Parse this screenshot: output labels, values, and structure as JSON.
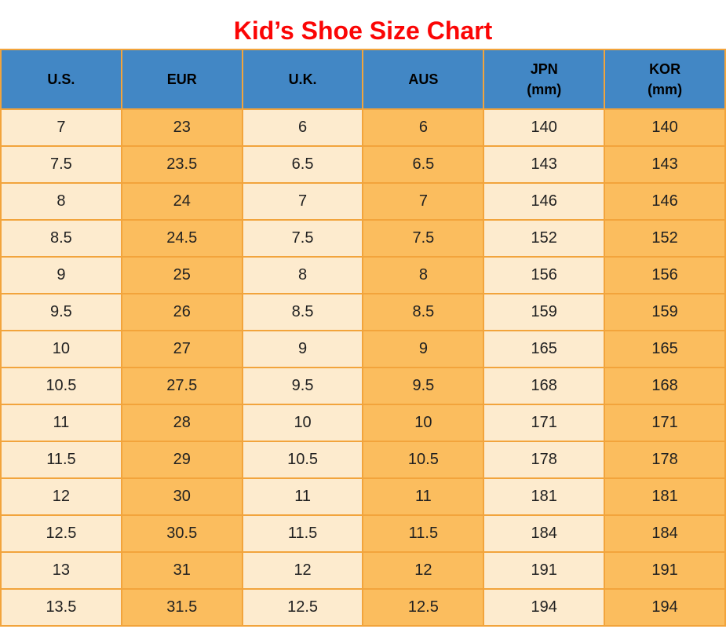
{
  "title": {
    "text": "Kid’s Shoe Size Chart",
    "color": "#fb0505"
  },
  "table": {
    "columns": [
      {
        "label": "U.S.",
        "sub": ""
      },
      {
        "label": "EUR",
        "sub": ""
      },
      {
        "label": "U.K.",
        "sub": ""
      },
      {
        "label": "AUS",
        "sub": ""
      },
      {
        "label": "JPN",
        "sub": "(mm)"
      },
      {
        "label": "KOR",
        "sub": "(mm)"
      }
    ],
    "rows": [
      [
        "7",
        "23",
        "6",
        "6",
        "140",
        "140"
      ],
      [
        "7.5",
        "23.5",
        "6.5",
        "6.5",
        "143",
        "143"
      ],
      [
        "8",
        "24",
        "7",
        "7",
        "146",
        "146"
      ],
      [
        "8.5",
        "24.5",
        "7.5",
        "7.5",
        "152",
        "152"
      ],
      [
        "9",
        "25",
        "8",
        "8",
        "156",
        "156"
      ],
      [
        "9.5",
        "26",
        "8.5",
        "8.5",
        "159",
        "159"
      ],
      [
        "10",
        "27",
        "9",
        "9",
        "165",
        "165"
      ],
      [
        "10.5",
        "27.5",
        "9.5",
        "9.5",
        "168",
        "168"
      ],
      [
        "11",
        "28",
        "10",
        "10",
        "171",
        "171"
      ],
      [
        "11.5",
        "29",
        "10.5",
        "10.5",
        "178",
        "178"
      ],
      [
        "12",
        "30",
        "11",
        "11",
        "181",
        "181"
      ],
      [
        "12.5",
        "30.5",
        "11.5",
        "11.5",
        "184",
        "184"
      ],
      [
        "13",
        "31",
        "12",
        "12",
        "191",
        "191"
      ],
      [
        "13.5",
        "31.5",
        "12.5",
        "12.5",
        "194",
        "194"
      ]
    ],
    "colors": {
      "header_bg": "#4287c5",
      "header_text": "#000000",
      "cell_cream": "#fdebce",
      "cell_orange": "#fbbd5e",
      "border": "#f2a43c",
      "body_text": "#212121",
      "title_red": "#fb0505"
    }
  },
  "chart_data": {
    "type": "table",
    "title": "Kid’s Shoe Size Chart",
    "columns": [
      "U.S.",
      "EUR",
      "U.K.",
      "AUS",
      "JPN (mm)",
      "KOR (mm)"
    ],
    "rows": [
      [
        7,
        23,
        6,
        6,
        140,
        140
      ],
      [
        7.5,
        23.5,
        6.5,
        6.5,
        143,
        143
      ],
      [
        8,
        24,
        7,
        7,
        146,
        146
      ],
      [
        8.5,
        24.5,
        7.5,
        7.5,
        152,
        152
      ],
      [
        9,
        25,
        8,
        8,
        156,
        156
      ],
      [
        9.5,
        26,
        8.5,
        8.5,
        159,
        159
      ],
      [
        10,
        27,
        9,
        9,
        165,
        165
      ],
      [
        10.5,
        27.5,
        9.5,
        9.5,
        168,
        168
      ],
      [
        11,
        28,
        10,
        10,
        171,
        171
      ],
      [
        11.5,
        29,
        10.5,
        10.5,
        178,
        178
      ],
      [
        12,
        30,
        11,
        11,
        181,
        181
      ],
      [
        12.5,
        30.5,
        11.5,
        11.5,
        184,
        184
      ],
      [
        13,
        31,
        12,
        12,
        191,
        191
      ],
      [
        13.5,
        31.5,
        12.5,
        12.5,
        194,
        194
      ]
    ]
  }
}
